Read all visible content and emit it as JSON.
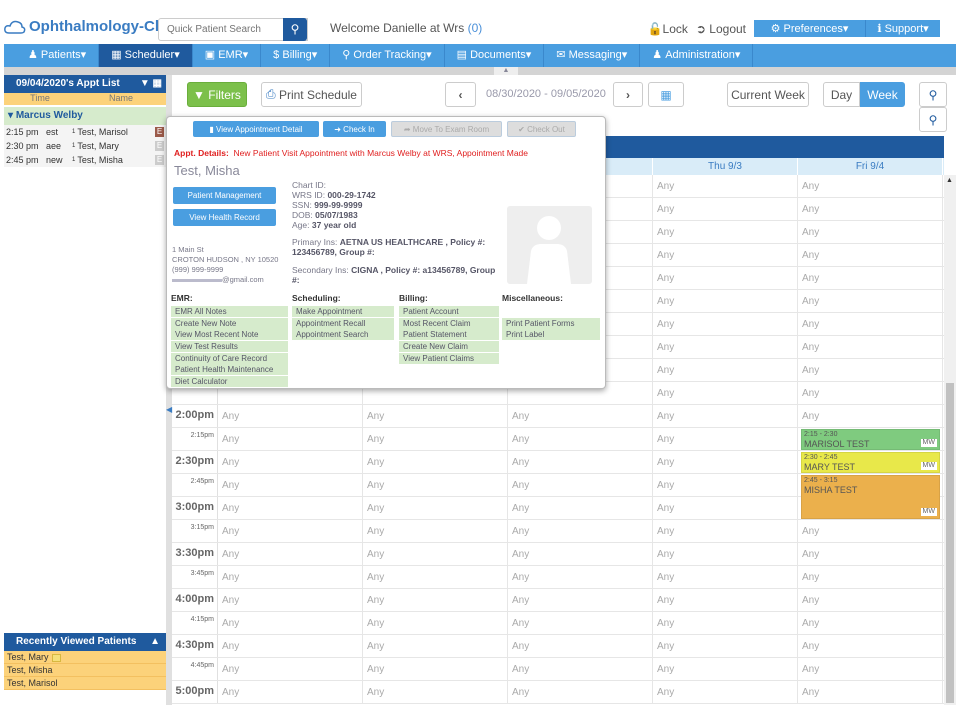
{
  "header": {
    "app_name": "Ophthalmology-Cloud",
    "search_placeholder": "Quick Patient Search",
    "welcome": "Welcome Danielle at Wrs",
    "welcome_count": "(0)",
    "lock": "Lock",
    "logout": "Logout",
    "preferences": "Preferences",
    "support": "Support"
  },
  "nav": [
    {
      "label": "Patients",
      "icon": "users-icon"
    },
    {
      "label": "Scheduler",
      "icon": "calendar-icon",
      "active": true
    },
    {
      "label": "EMR",
      "icon": "emr-icon"
    },
    {
      "label": "Billing",
      "icon": "dollar-icon"
    },
    {
      "label": "Order Tracking",
      "icon": "search-icon"
    },
    {
      "label": "Documents",
      "icon": "document-icon"
    },
    {
      "label": "Messaging",
      "icon": "envelope-icon"
    },
    {
      "label": "Administration",
      "icon": "user-icon"
    }
  ],
  "sidebar": {
    "title": "09/04/2020's Appt List",
    "col_time": "Time",
    "col_name": "Name",
    "provider": "Marcus Welby",
    "appointments": [
      {
        "time": "2:15 pm",
        "type": "est",
        "name": "Test, Marisol",
        "badge": "E",
        "active": true
      },
      {
        "time": "2:30 pm",
        "type": "aee",
        "name": "Test, Mary",
        "badge": "E"
      },
      {
        "time": "2:45 pm",
        "type": "new",
        "name": "Test, Misha",
        "badge": "E"
      }
    ],
    "recent_title": "Recently Viewed Patients",
    "recent": [
      "Test, Mary",
      "Test, Misha",
      "Test, Marisol"
    ]
  },
  "toolbar": {
    "filters": "Filters",
    "print": "Print Schedule",
    "date_range": "08/30/2020 - 09/05/2020",
    "current_week": "Current Week",
    "day": "Day",
    "week": "Week",
    "active_view": "Week"
  },
  "calendar": {
    "headers": [
      "",
      "",
      "",
      "Thu 9/3",
      "Fri 9/4"
    ],
    "empty_label": "Any",
    "times": [
      "",
      "",
      "",
      "",
      "",
      "",
      "",
      "",
      "",
      "",
      "2:00pm",
      "2:15pm",
      "2:30pm",
      "2:45pm",
      "3:00pm",
      "3:15pm",
      "3:30pm",
      "3:45pm",
      "4:00pm",
      "4:15pm",
      "4:30pm",
      "4:45pm",
      "5:00pm"
    ],
    "events": [
      {
        "time": "2:15 - 2:30",
        "name": "MARISOL TEST",
        "provider": "MW",
        "color": "#7fcb7f",
        "row": 11,
        "span": 1
      },
      {
        "time": "2:30 - 2:45",
        "name": "MARY TEST",
        "provider": "MW",
        "color": "#e8e84a",
        "row": 12,
        "span": 1
      },
      {
        "time": "2:45 - 3:15",
        "name": "MISHA TEST",
        "provider": "MW",
        "color": "#ebb04c",
        "row": 13,
        "span": 2
      }
    ]
  },
  "popup": {
    "btn_detail": "View Appointment Detail",
    "btn_checkin": "Check In",
    "btn_move": "Move To Exam Room",
    "btn_checkout": "Check Out",
    "appt_label": "Appt. Details:",
    "appt_text": "New Patient Visit Appointment with Marcus Welby at WRS, Appointment Made",
    "patient_name": "Test, Misha",
    "btn_pm": "Patient Management",
    "btn_vhr": "View Health Record",
    "chart_id_label": "Chart ID:",
    "wrs_label": "WRS ID:",
    "wrs": "000-29-1742",
    "ssn_label": "SSN:",
    "ssn": "999-99-9999",
    "dob_label": "DOB:",
    "dob": "05/07/1983",
    "age_label": "Age:",
    "age": "37 year old",
    "primary_label": "Primary Ins:",
    "primary": "AETNA US HEALTHCARE , Policy #: 123456789, Group #:",
    "secondary_label": "Secondary Ins:",
    "secondary": "CIGNA , Policy #: a13456789, Group #:",
    "address1": "1 Main St",
    "address2": "CROTON HUDSON , NY 10520",
    "phone": "(999) 999-9999",
    "email": "@gmail.com",
    "sections": [
      {
        "title": "EMR:",
        "items": [
          "EMR All Notes",
          "Create New Note",
          "View Most Recent Note",
          "View Test Results",
          "Continuity of Care Record",
          "Patient Health Maintenance",
          "Diet Calculator"
        ]
      },
      {
        "title": "Scheduling:",
        "items": [
          "Make Appointment",
          "Appointment Recall",
          "Appointment Search"
        ]
      },
      {
        "title": "Billing:",
        "items": [
          "Patient Account",
          "Most Recent Claim",
          "Patient Statement",
          "Create New Claim",
          "View Patient Claims"
        ]
      },
      {
        "title": "Miscellaneous:",
        "items": [
          "",
          "Print Patient Forms",
          "Print Label"
        ]
      }
    ]
  },
  "colors": {
    "primary": "#4a9ee0",
    "dark": "#1f5a9e",
    "filters": "#7cc04b",
    "alert": "#e02020"
  }
}
